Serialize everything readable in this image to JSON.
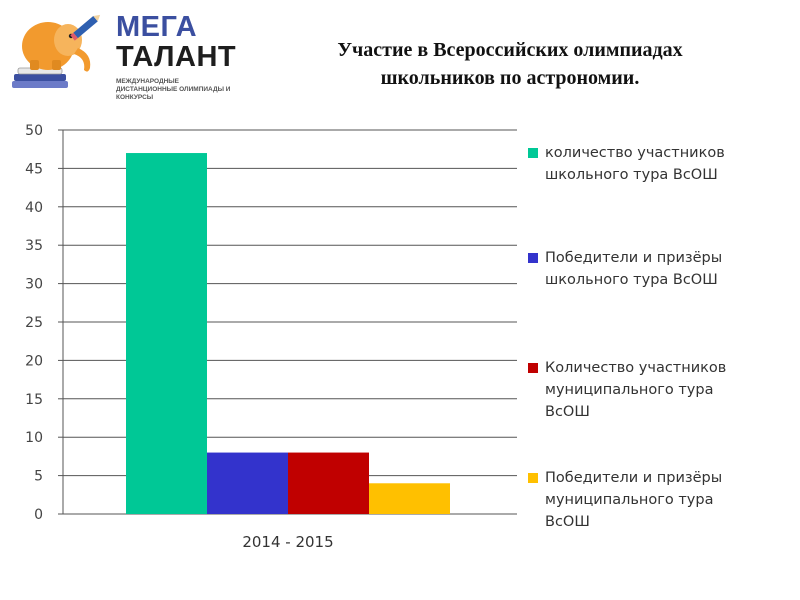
{
  "logo": {
    "line1": "МЕГА",
    "line2": "ТАЛАНТ",
    "subtitle": "Международные дистанционные олимпиады и конкурсы",
    "icon": "elephant-pencil-books-icon",
    "colors": {
      "line1": "#3b4fa0",
      "line2": "#1e1e1e",
      "elephant": "#f29a2e",
      "pencil": "#2e5fb0"
    }
  },
  "slide": {
    "title_line1": "Участие в Всероссийских олимпиадах",
    "title_line2": "школьников по астрономии."
  },
  "chart_data": {
    "type": "bar",
    "categories": [
      "2014 - 2015"
    ],
    "series": [
      {
        "name": "количество участников\nшкольного тура ВсОШ",
        "values": [
          47
        ],
        "color": "#00c896"
      },
      {
        "name": "Победители и призёры\nшкольного тура  ВсОШ",
        "values": [
          8
        ],
        "color": "#3333cc"
      },
      {
        "name": "Количество участников\nмуниципального тура\nВсОШ",
        "values": [
          8
        ],
        "color": "#c00000"
      },
      {
        "name": "Победители и призёры\nмуниципального тура\nВсОШ",
        "values": [
          4
        ],
        "color": "#ffc000"
      }
    ],
    "ylim": [
      0,
      50
    ],
    "yticks": [
      0,
      5,
      10,
      15,
      20,
      25,
      30,
      35,
      40,
      45,
      50
    ],
    "grid": true,
    "legend_position": "right"
  }
}
